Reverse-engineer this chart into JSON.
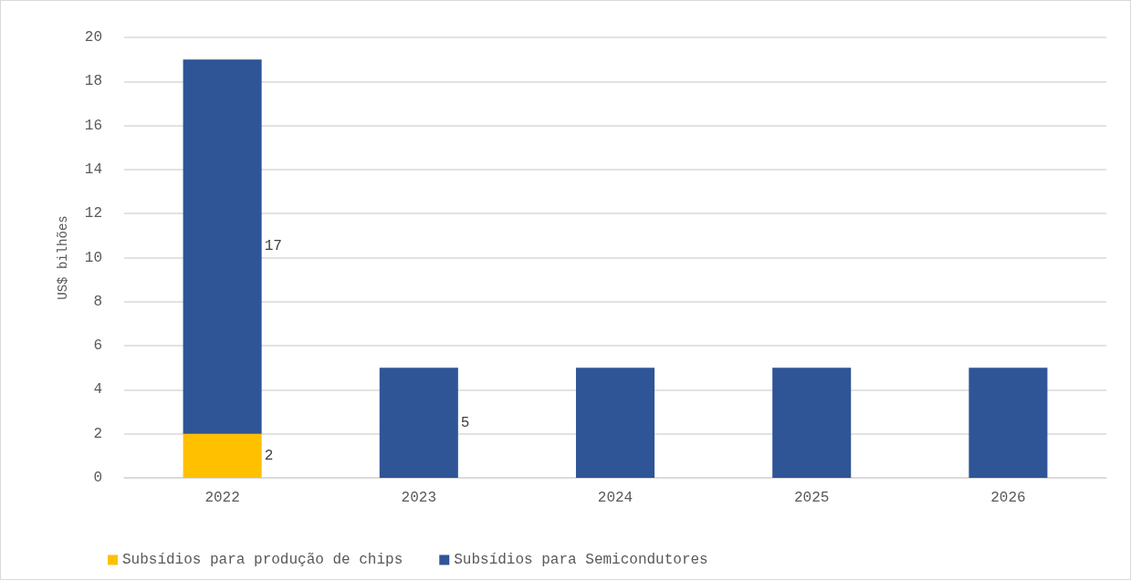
{
  "chart_data": {
    "type": "bar",
    "stacked": true,
    "ylabel": "US$ bilhões",
    "categories": [
      "2022",
      "2023",
      "2024",
      "2025",
      "2026"
    ],
    "series": [
      {
        "name": "Subsídios para produção de chips",
        "color": "#ffc000",
        "values": [
          2,
          0,
          0,
          0,
          0
        ],
        "value_labels": [
          "2",
          null,
          null,
          null,
          null
        ]
      },
      {
        "name": "Subsídios para Semicondutores",
        "color": "#2f5597",
        "values": [
          17,
          5,
          5,
          5,
          5
        ],
        "value_labels": [
          "17",
          "5",
          null,
          null,
          null
        ]
      }
    ],
    "ylim": [
      0,
      20
    ],
    "yticks": [
      0,
      2,
      4,
      6,
      8,
      10,
      12,
      14,
      16,
      18,
      20
    ],
    "grid": "y",
    "legend": "bottom left"
  }
}
